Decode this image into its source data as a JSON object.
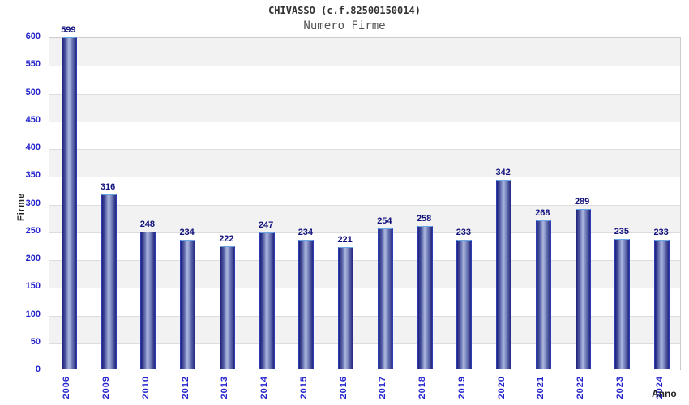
{
  "header": {
    "title": "CHIVASSO (c.f.82500150014)",
    "subtitle": "Numero Firme"
  },
  "chart_data": {
    "type": "bar",
    "title": "CHIVASSO (c.f.82500150014)",
    "subtitle": "Numero Firme",
    "xlabel": "Anno",
    "ylabel": "Firme",
    "categories": [
      "2006",
      "2009",
      "2010",
      "2012",
      "2013",
      "2014",
      "2015",
      "2016",
      "2017",
      "2018",
      "2019",
      "2020",
      "2021",
      "2022",
      "2023",
      "2024"
    ],
    "values": [
      599,
      316,
      248,
      234,
      222,
      247,
      234,
      221,
      254,
      258,
      233,
      342,
      268,
      289,
      235,
      233
    ],
    "ylim": [
      0,
      600
    ],
    "ytick_step": 50,
    "grid": true,
    "legend": false,
    "band_colors": [
      "#f2f2f2",
      "#ffffff"
    ],
    "grid_color": "#dddddd",
    "plot_border_color": "#cccccc",
    "tick_label_color": "#2424cc",
    "value_label_color": "#12127e",
    "bar_color_dark": "#1e2078",
    "bar_color_light": "#aab4dc",
    "bar_border_top": "#6aa6e4",
    "bar_border_side": "#2c3cb4",
    "title_color": "#333333",
    "subtitle_color": "#555555",
    "axis_title_color": "#222222"
  }
}
